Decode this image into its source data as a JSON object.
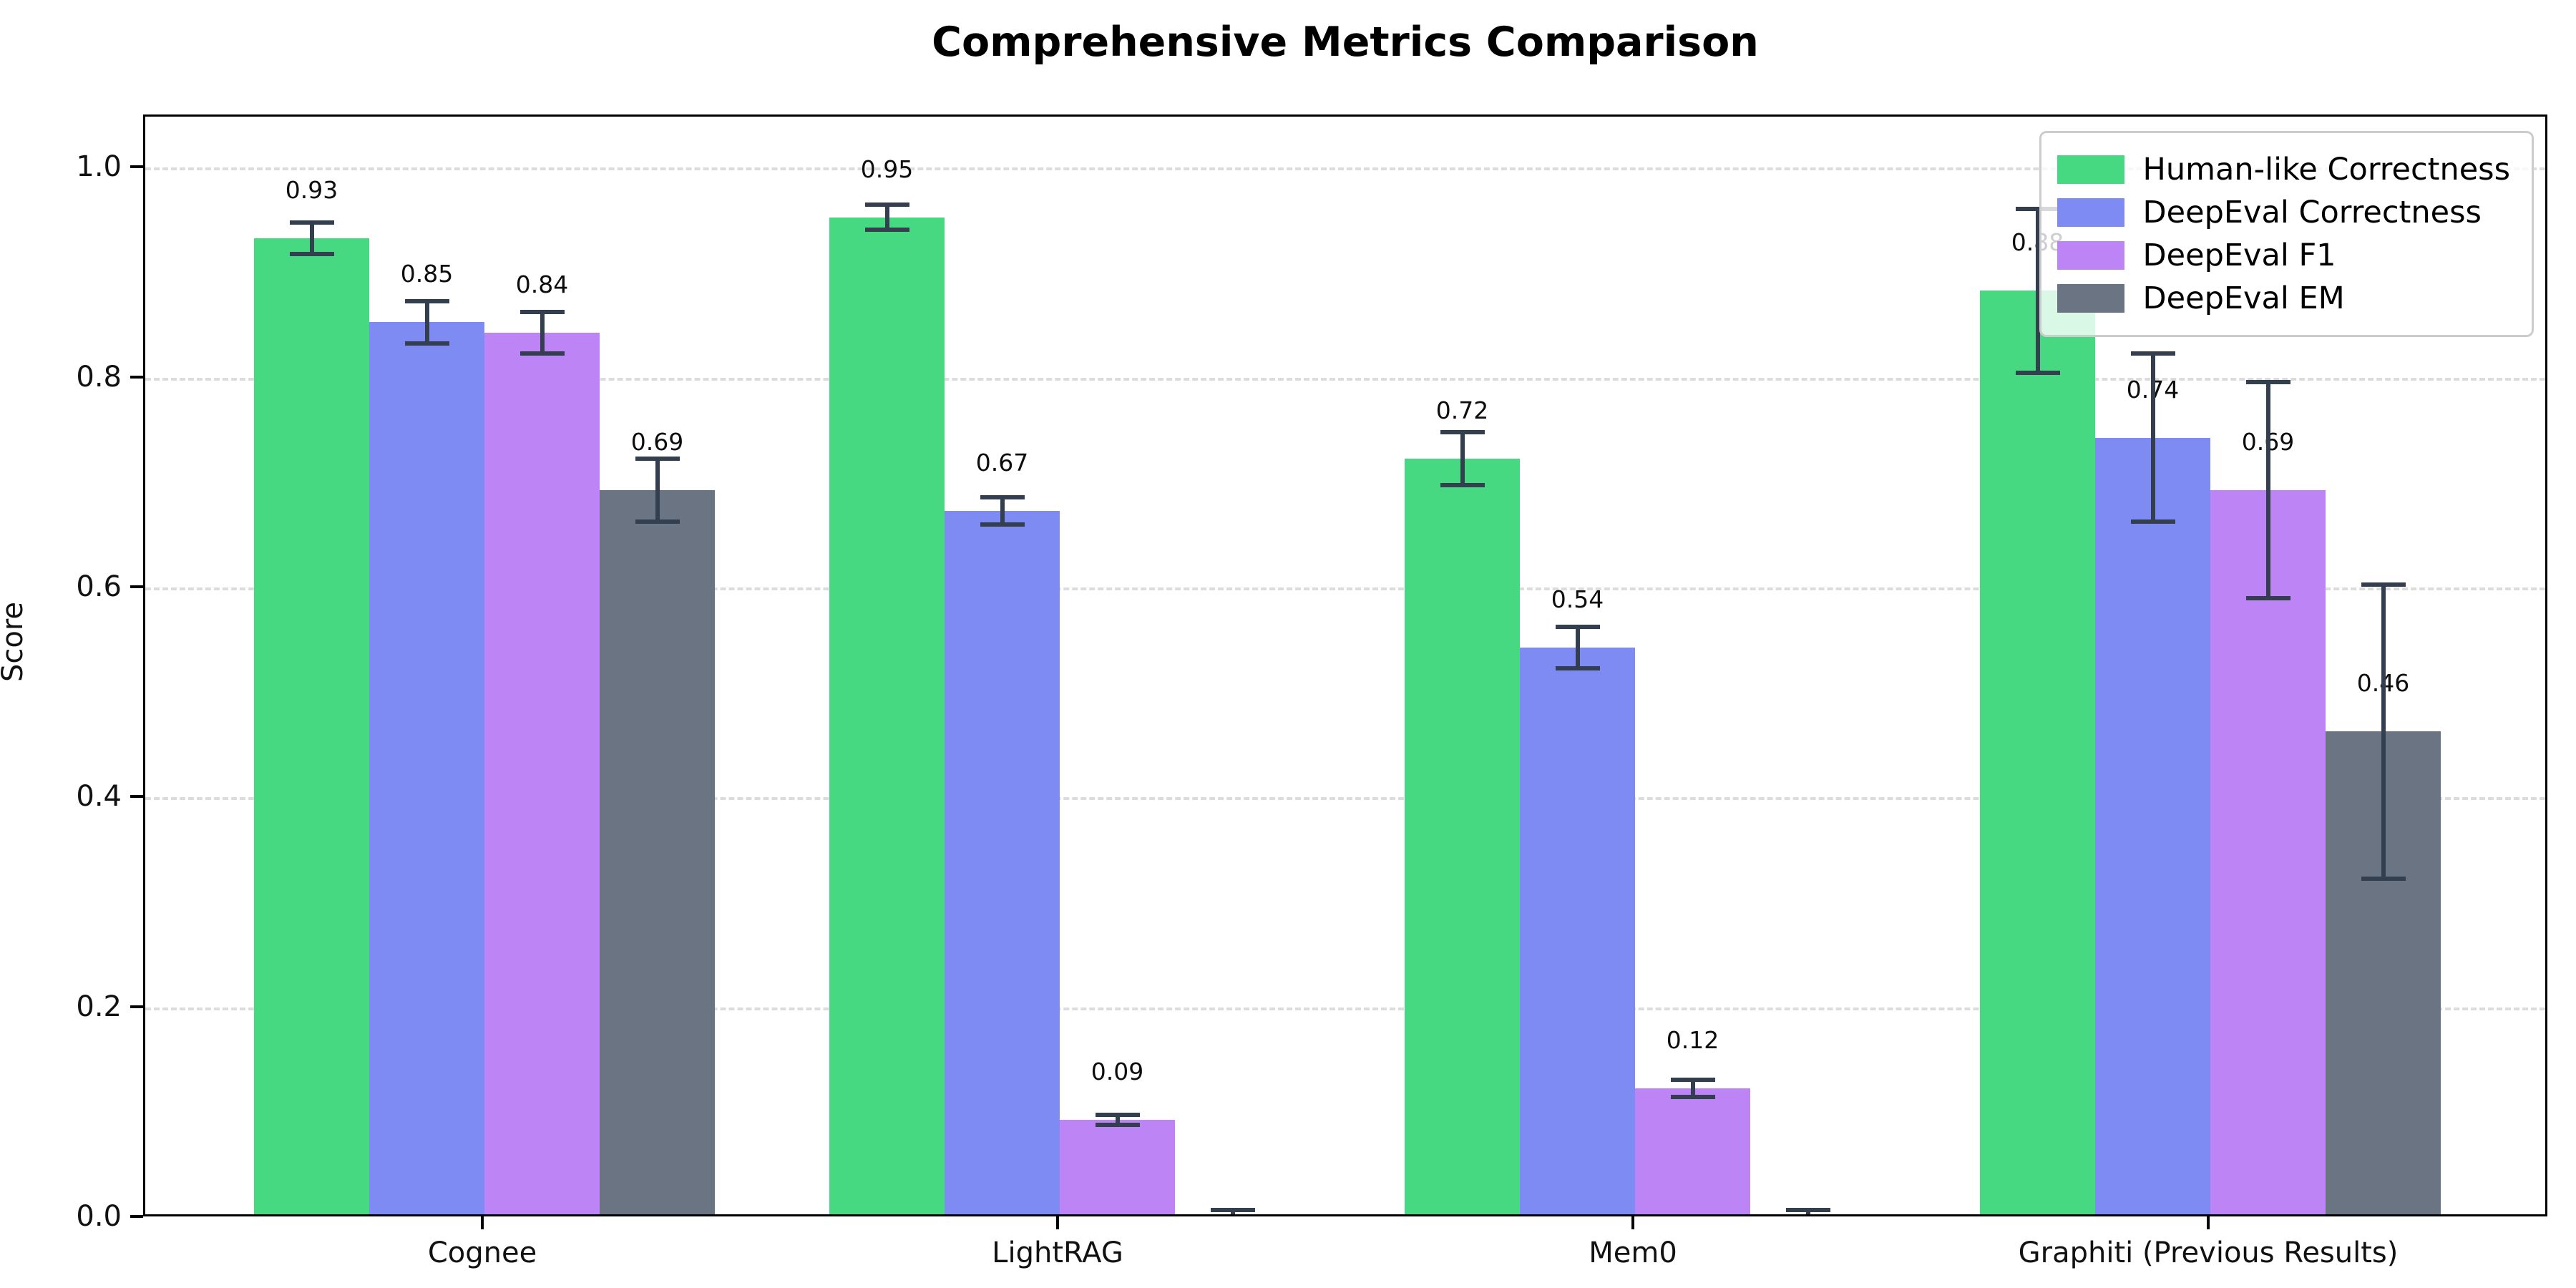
{
  "chart_data": {
    "type": "bar",
    "title": "Comprehensive Metrics Comparison",
    "ylabel": "Score",
    "xlabel": "",
    "categories": [
      "Cognee",
      "LightRAG",
      "Mem0",
      "Graphiti (Previous Results)"
    ],
    "series": [
      {
        "name": "Human-like Correctness",
        "color": "#47d981",
        "values": [
          0.93,
          0.95,
          0.72,
          0.88
        ],
        "errors": [
          0.015,
          0.012,
          0.025,
          0.078
        ]
      },
      {
        "name": "DeepEval Correctness",
        "color": "#7e8bf2",
        "values": [
          0.85,
          0.67,
          0.54,
          0.74
        ],
        "errors": [
          0.02,
          0.013,
          0.02,
          0.08
        ]
      },
      {
        "name": "DeepEval F1",
        "color": "#bd84f6",
        "values": [
          0.84,
          0.09,
          0.12,
          0.69
        ],
        "errors": [
          0.02,
          0.005,
          0.008,
          0.103
        ]
      },
      {
        "name": "DeepEval EM",
        "color": "#6a7482",
        "values": [
          0.69,
          0.0,
          0.0,
          0.46
        ],
        "errors": [
          0.03,
          0.004,
          0.004,
          0.14
        ]
      }
    ],
    "bar_value_labels": [
      "0.93",
      "0.95",
      "0.72",
      "0.88",
      "0.85",
      "0.67",
      "0.54",
      "0.74",
      "0.84",
      "0.09",
      "0.12",
      "0.69",
      "0.69",
      "",
      "",
      "0.46"
    ],
    "yticks": [
      "0.0",
      "0.2",
      "0.4",
      "0.6",
      "0.8",
      "1.0"
    ],
    "ylim": [
      0,
      1.05
    ],
    "grid": "horizontal-dashed",
    "legend_position": "upper right",
    "style": {
      "error_bar_color": "#333e4f",
      "grid_color": "#dcdcdc",
      "spine_color": "#000000",
      "background": "#ffffff"
    }
  }
}
